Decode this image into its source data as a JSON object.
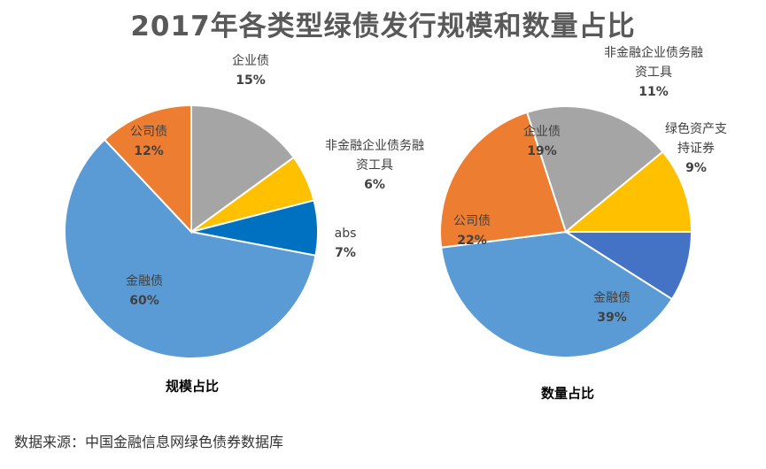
{
  "title": "2017年各类型绿债发行规模和数量占比",
  "source_note": "数据来源：中国金融信息网绿色债券数据库",
  "chart_data": [
    {
      "type": "pie",
      "title": "规模占比",
      "slices": [
        {
          "label": [
            "企业债"
          ],
          "pct_text": "15%",
          "value": 15,
          "color": "#A5A5A5"
        },
        {
          "label": [
            "非金融企业债务融",
            "资工具"
          ],
          "pct_text": "6%",
          "value": 6,
          "color": "#FFC000"
        },
        {
          "label": [
            "abs"
          ],
          "pct_text": "7%",
          "value": 7,
          "color": "#0070C0"
        },
        {
          "label": [
            "金融债"
          ],
          "pct_text": "60%",
          "value": 60,
          "color": "#5B9BD5"
        },
        {
          "label": [
            "公司债"
          ],
          "pct_text": "12%",
          "value": 12,
          "color": "#ED7D31"
        }
      ]
    },
    {
      "type": "pie",
      "title": "数量占比",
      "slices": [
        {
          "label": [
            "绿色资产支",
            "持证券"
          ],
          "pct_text": "9%",
          "value": 9,
          "color": "#4472C4"
        },
        {
          "label": [
            "金融债"
          ],
          "pct_text": "39%",
          "value": 39,
          "color": "#5B9BD5"
        },
        {
          "label": [
            "公司债"
          ],
          "pct_text": "22%",
          "value": 22,
          "color": "#ED7D31"
        },
        {
          "label": [
            "企业债"
          ],
          "pct_text": "19%",
          "value": 19,
          "color": "#A5A5A5"
        },
        {
          "label": [
            "非金融企业债务融",
            "资工具"
          ],
          "pct_text": "11%",
          "value": 11,
          "color": "#FFC000"
        }
      ]
    }
  ]
}
